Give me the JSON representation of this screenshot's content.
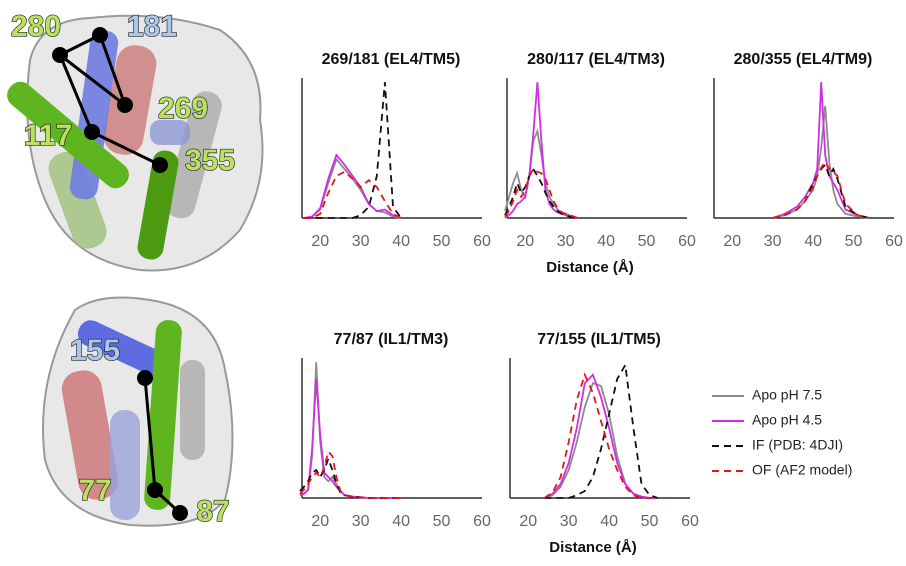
{
  "structure_labels": {
    "top": [
      "280",
      "181",
      "269",
      "117",
      "355"
    ],
    "bottom": [
      "155",
      "77",
      "87"
    ]
  },
  "chart_data": [
    {
      "type": "line",
      "title": "269/181 (EL4/TM5)",
      "xlim": [
        15,
        60
      ],
      "xticks": [
        20,
        30,
        40,
        50,
        60
      ],
      "ylim": [
        0,
        1
      ],
      "x": [
        16,
        18,
        20,
        22,
        24,
        26,
        28,
        30,
        32,
        34,
        36,
        38,
        40
      ],
      "series": [
        {
          "color": "#8c8c8c",
          "dash": false,
          "values": [
            0,
            0.01,
            0.06,
            0.25,
            0.42,
            0.35,
            0.28,
            0.2,
            0.1,
            0.05,
            0.04,
            0.01,
            0
          ]
        },
        {
          "color": "#d22ce6",
          "dash": false,
          "values": [
            0,
            0.01,
            0.07,
            0.28,
            0.45,
            0.38,
            0.3,
            0.22,
            0.1,
            0.05,
            0.06,
            0.02,
            0
          ]
        },
        {
          "color": "#111111",
          "dash": true,
          "values": [
            0,
            0,
            0,
            0,
            0,
            0,
            0,
            0.02,
            0.08,
            0.3,
            0.97,
            0.08,
            0
          ]
        },
        {
          "color": "#e8141a",
          "dash": true,
          "values": [
            0,
            0,
            0.03,
            0.18,
            0.3,
            0.33,
            0.28,
            0.22,
            0.27,
            0.22,
            0.12,
            0.03,
            0
          ]
        }
      ]
    },
    {
      "type": "line",
      "title": "280/117 (EL4/TM3)",
      "xlabel": "Distance (Å)",
      "xlim": [
        15,
        60
      ],
      "xticks": [
        20,
        30,
        40,
        50,
        60
      ],
      "ylim": [
        0,
        1
      ],
      "x": [
        15,
        16,
        17,
        18,
        19,
        20,
        21,
        22,
        23,
        24,
        25,
        26,
        27,
        28,
        29,
        30,
        31,
        32,
        33
      ],
      "series": [
        {
          "color": "#8c8c8c",
          "dash": false,
          "values": [
            0.05,
            0.15,
            0.25,
            0.32,
            0.2,
            0.15,
            0.3,
            0.55,
            0.62,
            0.45,
            0.25,
            0.15,
            0.1,
            0.06,
            0.04,
            0.03,
            0.02,
            0.01,
            0
          ]
        },
        {
          "color": "#d22ce6",
          "dash": false,
          "values": [
            0,
            0.02,
            0.05,
            0.1,
            0.12,
            0.15,
            0.3,
            0.6,
            0.97,
            0.55,
            0.2,
            0.1,
            0.06,
            0.04,
            0.03,
            0.02,
            0.01,
            0,
            0
          ]
        },
        {
          "color": "#111111",
          "dash": true,
          "values": [
            0.02,
            0.08,
            0.15,
            0.25,
            0.18,
            0.22,
            0.3,
            0.35,
            0.3,
            0.25,
            0.18,
            0.12,
            0.08,
            0.05,
            0.03,
            0.02,
            0.01,
            0,
            0
          ]
        },
        {
          "color": "#e8141a",
          "dash": true,
          "values": [
            0.01,
            0.05,
            0.12,
            0.2,
            0.15,
            0.2,
            0.3,
            0.35,
            0.33,
            0.32,
            0.28,
            0.2,
            0.12,
            0.07,
            0.04,
            0.03,
            0.02,
            0.01,
            0
          ]
        }
      ]
    },
    {
      "type": "line",
      "title": "280/355 (EL4/TM9)",
      "xlim": [
        15,
        60
      ],
      "xticks": [
        20,
        30,
        40,
        50,
        60
      ],
      "ylim": [
        0,
        1
      ],
      "x": [
        30,
        33,
        36,
        38,
        40,
        41,
        42,
        43,
        44,
        45,
        46,
        48,
        51,
        54
      ],
      "series": [
        {
          "color": "#8c8c8c",
          "dash": false,
          "values": [
            0,
            0.02,
            0.06,
            0.12,
            0.2,
            0.3,
            0.5,
            0.8,
            0.4,
            0.2,
            0.1,
            0.03,
            0.01,
            0
          ]
        },
        {
          "color": "#d22ce6",
          "dash": false,
          "values": [
            0,
            0.03,
            0.08,
            0.15,
            0.25,
            0.35,
            0.97,
            0.45,
            0.3,
            0.25,
            0.2,
            0.06,
            0.02,
            0
          ]
        },
        {
          "color": "#111111",
          "dash": true,
          "values": [
            0,
            0.02,
            0.06,
            0.12,
            0.25,
            0.3,
            0.35,
            0.38,
            0.3,
            0.35,
            0.28,
            0.08,
            0.02,
            0
          ]
        },
        {
          "color": "#e8141a",
          "dash": true,
          "values": [
            0,
            0.02,
            0.06,
            0.12,
            0.22,
            0.3,
            0.36,
            0.4,
            0.35,
            0.33,
            0.3,
            0.1,
            0.02,
            0
          ]
        }
      ]
    },
    {
      "type": "line",
      "title": "77/87 (IL1/TM3)",
      "xlim": [
        15,
        60
      ],
      "xticks": [
        20,
        30,
        40,
        50,
        60
      ],
      "ylim": [
        0,
        1
      ],
      "x": [
        15,
        16,
        17,
        18,
        19,
        20,
        21,
        22,
        23,
        24,
        25,
        26,
        28,
        32,
        40
      ],
      "series": [
        {
          "color": "#8c8c8c",
          "dash": false,
          "values": [
            0.02,
            0.03,
            0.06,
            0.3,
            0.97,
            0.4,
            0.15,
            0.12,
            0.15,
            0.1,
            0.05,
            0.02,
            0.01,
            0,
            0
          ]
        },
        {
          "color": "#d22ce6",
          "dash": false,
          "values": [
            0.02,
            0.03,
            0.06,
            0.35,
            0.85,
            0.45,
            0.18,
            0.15,
            0.12,
            0.08,
            0.05,
            0.02,
            0.01,
            0,
            0
          ]
        },
        {
          "color": "#111111",
          "dash": true,
          "values": [
            0.05,
            0.08,
            0.12,
            0.18,
            0.2,
            0.15,
            0.2,
            0.28,
            0.2,
            0.1,
            0.04,
            0.02,
            0.01,
            0,
            0
          ]
        },
        {
          "color": "#e8141a",
          "dash": true,
          "values": [
            0.03,
            0.06,
            0.1,
            0.15,
            0.18,
            0.15,
            0.22,
            0.33,
            0.3,
            0.15,
            0.05,
            0.02,
            0.01,
            0,
            0
          ]
        }
      ]
    },
    {
      "type": "line",
      "title": "77/155 (IL1/TM5)",
      "xlabel": "Distance (Å)",
      "xlim": [
        15,
        60
      ],
      "xticks": [
        20,
        30,
        40,
        50,
        60
      ],
      "ylim": [
        0,
        1
      ],
      "x": [
        24,
        26,
        28,
        30,
        32,
        34,
        36,
        38,
        40,
        42,
        44,
        46,
        48,
        50,
        52
      ],
      "series": [
        {
          "name": "Apo pH 7.5",
          "color": "#8c8c8c",
          "dash": false,
          "values": [
            0,
            0.02,
            0.08,
            0.2,
            0.4,
            0.65,
            0.82,
            0.8,
            0.6,
            0.3,
            0.1,
            0.03,
            0.01,
            0,
            0
          ]
        },
        {
          "name": "Apo pH 4.5",
          "color": "#d22ce6",
          "dash": false,
          "values": [
            0,
            0.03,
            0.1,
            0.25,
            0.5,
            0.82,
            0.88,
            0.72,
            0.5,
            0.25,
            0.1,
            0.03,
            0.01,
            0,
            0
          ]
        },
        {
          "name": "IF (PDB: 4DJI)",
          "color": "#111111",
          "dash": true,
          "values": [
            0,
            0,
            0,
            0,
            0.02,
            0.05,
            0.15,
            0.35,
            0.6,
            0.85,
            0.95,
            0.5,
            0.1,
            0.02,
            0
          ]
        },
        {
          "name": "OF (AF2 model)",
          "color": "#e8141a",
          "dash": true,
          "values": [
            0,
            0.04,
            0.15,
            0.4,
            0.7,
            0.88,
            0.75,
            0.55,
            0.35,
            0.2,
            0.08,
            0.02,
            0,
            0,
            0
          ]
        }
      ]
    }
  ]
}
